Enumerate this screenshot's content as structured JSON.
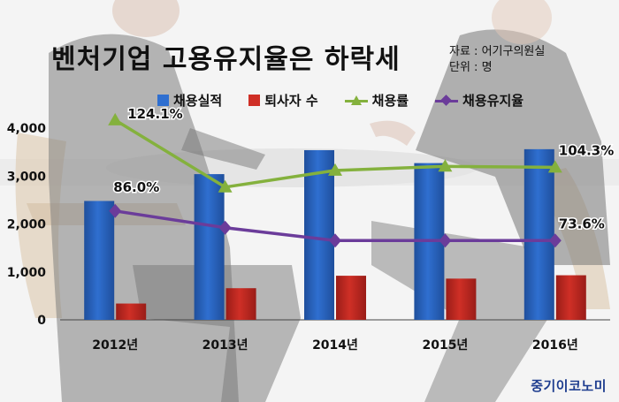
{
  "title": "벤처기업 고용유지율은 하락세",
  "source": {
    "line1": "자료 : 어기구의원실",
    "line2": "단위 : 명"
  },
  "brand": "중기이코노미",
  "colors": {
    "hiring_bar": "#2f6fd0",
    "retiree_bar": "#cf2f26",
    "hiring_rate_line": "#84b13d",
    "retention_line": "#6b3c9a"
  },
  "chart_data": {
    "type": "bar",
    "categories": [
      "2012년",
      "2013년",
      "2014년",
      "2015년",
      "2016년"
    ],
    "ylim": [
      0,
      4000
    ],
    "y_ticks": [
      "0",
      "1,000",
      "2,000",
      "3,000",
      "4,000"
    ],
    "gridlines": false,
    "legend_position": "top",
    "series": [
      {
        "name": "채용실적",
        "type": "bar",
        "values": [
          2480,
          3040,
          3540,
          3270,
          3560
        ]
      },
      {
        "name": "퇴사자 수",
        "type": "bar",
        "values": [
          340,
          660,
          920,
          860,
          930
        ]
      },
      {
        "name": "채용률",
        "type": "line",
        "marker": "triangle",
        "unit": "%",
        "values": [
          124.1,
          96.0,
          103.0,
          104.7,
          104.3
        ]
      },
      {
        "name": "채용유지율",
        "type": "line",
        "marker": "diamond",
        "unit": "%",
        "values": [
          86.0,
          79.0,
          73.6,
          73.6,
          73.6
        ]
      }
    ],
    "annotations": [
      {
        "series": "채용률",
        "category": "2012년",
        "text": "124.1%"
      },
      {
        "series": "채용유지율",
        "category": "2012년",
        "text": "86.0%"
      },
      {
        "series": "채용률",
        "category": "2016년",
        "text": "104.3%"
      },
      {
        "series": "채용유지율",
        "category": "2016년",
        "text": "73.6%"
      }
    ]
  }
}
